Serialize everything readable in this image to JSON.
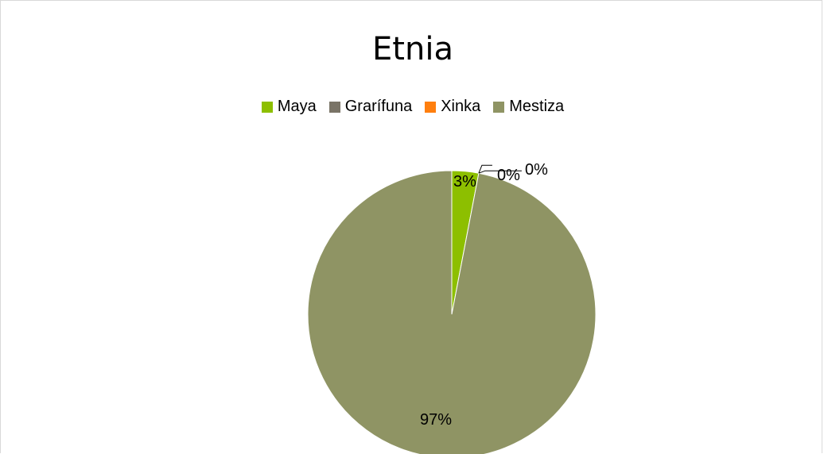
{
  "chart_data": {
    "type": "pie",
    "title": "Etnia",
    "legend_position": "top",
    "categories": [
      "Maya",
      "Grarífuna",
      "Xinka",
      "Mestiza"
    ],
    "values": [
      3,
      0,
      0,
      97
    ],
    "labels": [
      "3%",
      "0%",
      "0%",
      "97%"
    ],
    "colors": [
      "#8dbf00",
      "#7a7467",
      "#ff7f0e",
      "#8f9464"
    ]
  }
}
